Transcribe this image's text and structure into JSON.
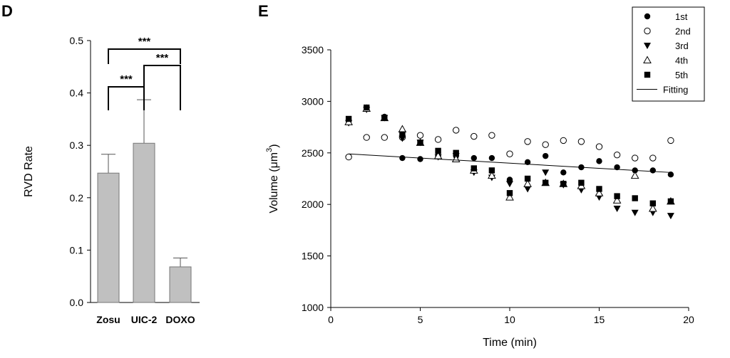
{
  "chart_data": [
    {
      "panel": "D",
      "type": "bar",
      "title": "",
      "xlabel": "",
      "ylabel": "RVD Rate",
      "ylim": [
        0.0,
        0.5
      ],
      "yticks": [
        "0.0",
        "0.1",
        "0.2",
        "0.3",
        "0.4",
        "0.5"
      ],
      "categories": [
        "Zosu",
        "UIC-2",
        "DOXO"
      ],
      "values": [
        0.247,
        0.304,
        0.068
      ],
      "errors": [
        0.036,
        0.083,
        0.017
      ],
      "bar_color": "#c0c0c0",
      "significance": [
        {
          "from": 0,
          "to": 1,
          "label": "***"
        },
        {
          "from": 1,
          "to": 2,
          "label": "***"
        },
        {
          "from": 0,
          "to": 2,
          "label": "***"
        }
      ]
    },
    {
      "panel": "E",
      "type": "scatter",
      "title": "",
      "xlabel": "Time (min)",
      "ylabel_main": "Volume (μm",
      "ylabel_sup": "3",
      "ylabel_end": ")",
      "xlim": [
        0,
        20
      ],
      "ylim": [
        1000,
        3500
      ],
      "xticks": [
        "0",
        "5",
        "10",
        "15",
        "20"
      ],
      "yticks": [
        "1000",
        "1500",
        "2000",
        "2500",
        "3000",
        "3500"
      ],
      "series": [
        {
          "name": "1st",
          "marker": "circle-filled",
          "x": [
            1,
            2,
            3,
            4,
            5,
            6,
            7,
            8,
            9,
            10,
            11,
            12,
            13,
            14,
            15,
            16,
            17,
            18,
            19
          ],
          "y": [
            2810,
            2940,
            2850,
            2450,
            2440,
            2470,
            2470,
            2450,
            2450,
            2240,
            2410,
            2470,
            2310,
            2360,
            2420,
            2360,
            2330,
            2330,
            2290
          ]
        },
        {
          "name": "2nd",
          "marker": "circle-open",
          "x": [
            1,
            2,
            3,
            4,
            5,
            6,
            7,
            8,
            9,
            10,
            11,
            12,
            13,
            14,
            15,
            16,
            17,
            18,
            19
          ],
          "y": [
            2460,
            2650,
            2650,
            2650,
            2670,
            2630,
            2720,
            2660,
            2670,
            2490,
            2610,
            2580,
            2620,
            2610,
            2560,
            2480,
            2450,
            2450,
            2620
          ]
        },
        {
          "name": "3rd",
          "marker": "triangle-down-filled",
          "x": [
            1,
            2,
            3,
            4,
            5,
            6,
            7,
            8,
            9,
            10,
            11,
            12,
            13,
            14,
            15,
            16,
            17,
            18,
            19
          ],
          "y": [
            2790,
            2920,
            2840,
            2640,
            2600,
            2460,
            2470,
            2310,
            2260,
            2200,
            2150,
            2310,
            2190,
            2140,
            2070,
            1960,
            1920,
            1920,
            1890
          ]
        },
        {
          "name": "4th",
          "marker": "triangle-up-open",
          "x": [
            1,
            2,
            3,
            4,
            5,
            6,
            7,
            8,
            9,
            10,
            11,
            12,
            13,
            14,
            15,
            16,
            17,
            18,
            19
          ],
          "y": [
            2800,
            2930,
            2840,
            2730,
            2600,
            2470,
            2440,
            2330,
            2280,
            2070,
            2200,
            2210,
            2200,
            2180,
            2110,
            2040,
            2280,
            1960,
            2030
          ]
        },
        {
          "name": "5th",
          "marker": "square-filled",
          "x": [
            1,
            2,
            3,
            4,
            5,
            6,
            7,
            8,
            9,
            10,
            11,
            12,
            13,
            14,
            15,
            16,
            17,
            18,
            19
          ],
          "y": [
            2830,
            2940,
            2840,
            2680,
            2600,
            2520,
            2500,
            2350,
            2330,
            2110,
            2250,
            2210,
            2200,
            2210,
            2150,
            2080,
            2060,
            2010,
            2030
          ]
        },
        {
          "name": "Fitting",
          "marker": "line",
          "x": [
            1,
            19
          ],
          "y": [
            2490,
            2310
          ]
        }
      ],
      "legend_position": "top-right"
    }
  ]
}
